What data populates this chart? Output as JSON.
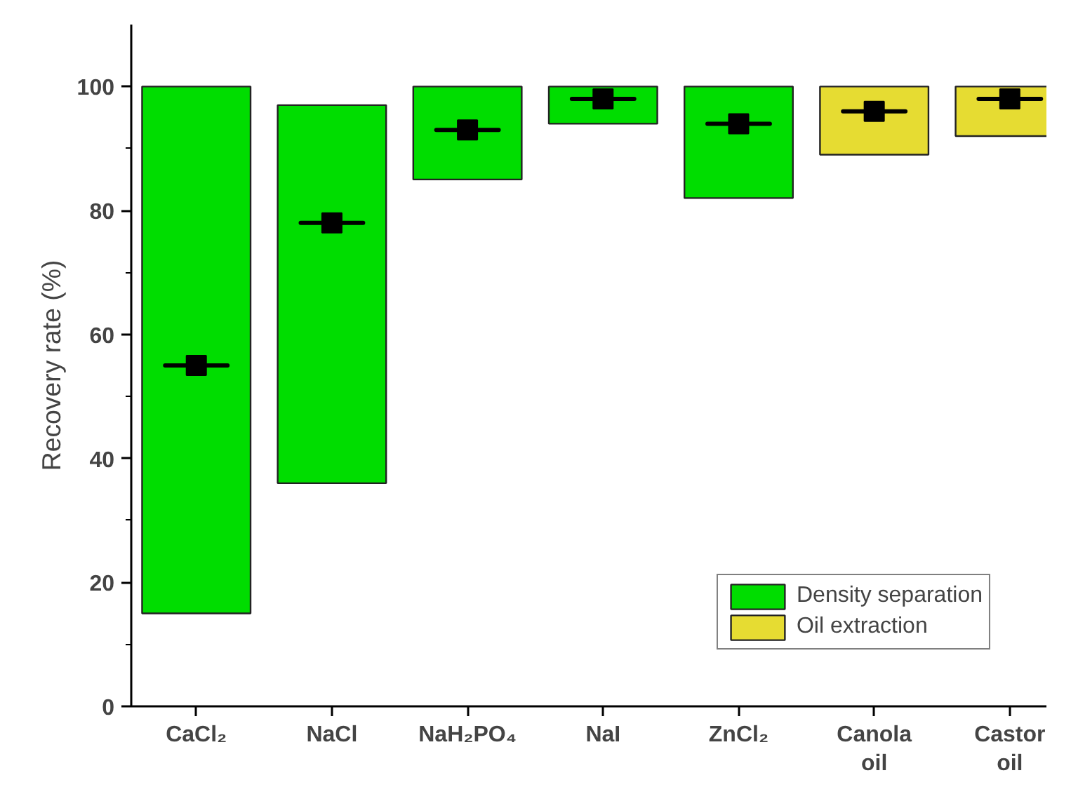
{
  "chart_data": {
    "type": "box",
    "categories": [
      "CaCl₂",
      "NaCl",
      "NaH₂PO₄",
      "NaI",
      "ZnCl₂",
      "Canola oil",
      "Castor oil"
    ],
    "ylabel": "Recovery rate (%)",
    "ylim": [
      0,
      110
    ],
    "yticks": [
      0,
      20,
      40,
      60,
      80,
      100
    ],
    "legend": "bottom right",
    "grid": false,
    "series": [
      {
        "name": "Density separation",
        "color": "#00dd00",
        "boxes": [
          {
            "low": 15,
            "q1": 15,
            "median": 55,
            "q3": 100,
            "high": 100,
            "mean": 55
          },
          {
            "low": 36,
            "q1": 36,
            "median": 78,
            "q3": 97,
            "high": 97,
            "mean": 78
          },
          {
            "low": 85,
            "q1": 85,
            "median": 93,
            "q3": 100,
            "high": 100,
            "mean": 93
          },
          {
            "low": 94,
            "q1": 94,
            "median": 98,
            "q3": 100,
            "high": 100,
            "mean": 98
          },
          {
            "low": 82,
            "q1": 82,
            "median": 94,
            "q3": 100,
            "high": 100,
            "mean": 94
          },
          null,
          null
        ]
      },
      {
        "name": "Oil extraction",
        "color": "#e6dc32",
        "boxes": [
          null,
          null,
          null,
          null,
          null,
          {
            "low": 89,
            "q1": 89,
            "median": 96,
            "q3": 100,
            "high": 100,
            "mean": 96
          },
          {
            "low": 92,
            "q1": 92,
            "median": 98,
            "q3": 100,
            "high": 100,
            "mean": 98
          }
        ]
      }
    ]
  }
}
